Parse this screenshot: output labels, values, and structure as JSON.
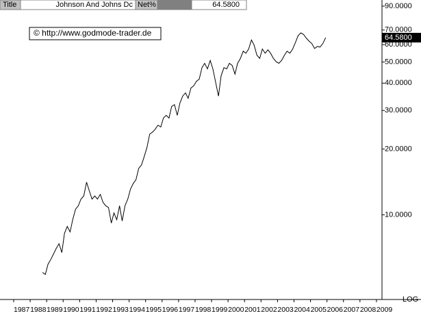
{
  "header": {
    "title_label": "Title",
    "name": "Johnson And Johns Dc",
    "field": "Net%",
    "value": "64.5800"
  },
  "chart_data": {
    "type": "line",
    "annotation": "© http://www.godmode-trader.de",
    "log_scale": true,
    "scale_label": "LOG",
    "color": "#000000",
    "x": [
      1988.75,
      1988.92,
      1989.08,
      1989.25,
      1989.42,
      1989.58,
      1989.75,
      1989.92,
      1990.08,
      1990.25,
      1990.42,
      1990.58,
      1990.75,
      1990.92,
      1991.08,
      1991.25,
      1991.42,
      1991.58,
      1991.75,
      1991.92,
      1992.08,
      1992.25,
      1992.42,
      1992.58,
      1992.75,
      1992.92,
      1993.08,
      1993.25,
      1993.42,
      1993.58,
      1993.75,
      1993.92,
      1994.08,
      1994.25,
      1994.42,
      1994.58,
      1994.75,
      1994.92,
      1995.08,
      1995.25,
      1995.42,
      1995.58,
      1995.75,
      1995.92,
      1996.08,
      1996.25,
      1996.42,
      1996.58,
      1996.75,
      1996.92,
      1997.08,
      1997.25,
      1997.42,
      1997.58,
      1997.75,
      1997.92,
      1998.08,
      1998.25,
      1998.42,
      1998.58,
      1998.75,
      1998.92,
      1999.08,
      1999.25,
      1999.42,
      1999.58,
      1999.75,
      1999.92,
      2000.08,
      2000.25,
      2000.42,
      2000.58,
      2000.75,
      2000.92,
      2001.08,
      2001.25,
      2001.42,
      2001.58,
      2001.75,
      2001.92,
      2002.08,
      2002.25,
      2002.42,
      2002.58,
      2002.75,
      2002.92,
      2003.08,
      2003.25,
      2003.42,
      2003.58,
      2003.75,
      2003.92,
      2004.08,
      2004.25,
      2004.42,
      2004.58,
      2004.75,
      2004.92,
      2005.08,
      2005.25,
      2005.42,
      2005.58,
      2005.75,
      2005.92
    ],
    "values": [
      5.45,
      5.34,
      5.94,
      6.25,
      6.63,
      7.02,
      7.38,
      6.72,
      8.23,
      8.85,
      8.35,
      9.5,
      10.6,
      11.0,
      11.8,
      12.2,
      14.1,
      12.9,
      11.8,
      12.2,
      11.8,
      12.4,
      11.4,
      11.0,
      10.8,
      9.17,
      10.2,
      9.5,
      11.0,
      9.37,
      11.0,
      11.8,
      13.1,
      13.9,
      14.5,
      16.3,
      16.9,
      18.5,
      20.3,
      23.4,
      23.9,
      24.6,
      25.7,
      25.2,
      27.7,
      28.5,
      27.7,
      31.3,
      31.9,
      28.5,
      32.4,
      34.9,
      36.1,
      34.1,
      38.0,
      38.9,
      40.8,
      41.7,
      47.1,
      49.3,
      46.5,
      50.8,
      46.5,
      40.3,
      34.9,
      43.2,
      47.1,
      46.5,
      49.3,
      48.2,
      44.0,
      49.3,
      51.9,
      56.0,
      54.8,
      57.3,
      63.0,
      59.7,
      53.7,
      51.9,
      57.3,
      54.8,
      56.8,
      54.8,
      51.9,
      50.1,
      49.3,
      50.8,
      53.7,
      56.0,
      54.8,
      57.3,
      61.2,
      66.0,
      67.9,
      66.8,
      64.2,
      62.2,
      60.7,
      57.6,
      58.9,
      58.5,
      60.7,
      64.58
    ],
    "xlim": [
      1987,
      2010
    ],
    "xticks": [
      1987,
      1988,
      1989,
      1990,
      1991,
      1992,
      1993,
      1994,
      1995,
      1996,
      1997,
      1998,
      1999,
      2000,
      2001,
      2002,
      2003,
      2004,
      2005,
      2006,
      2007,
      2008,
      2009
    ],
    "ylim": [
      4.1,
      96
    ],
    "yticks": [
      {
        "value": 10,
        "label": "10.0000"
      },
      {
        "value": 20,
        "label": "20.0000"
      },
      {
        "value": 30,
        "label": "30.0000"
      },
      {
        "value": 40,
        "label": "40.0000"
      },
      {
        "value": 50,
        "label": "50.0000"
      },
      {
        "value": 60,
        "label": "60.0000"
      },
      {
        "value": 70,
        "label": "70.0000"
      },
      {
        "value": 90,
        "label": "90.0000"
      }
    ]
  }
}
